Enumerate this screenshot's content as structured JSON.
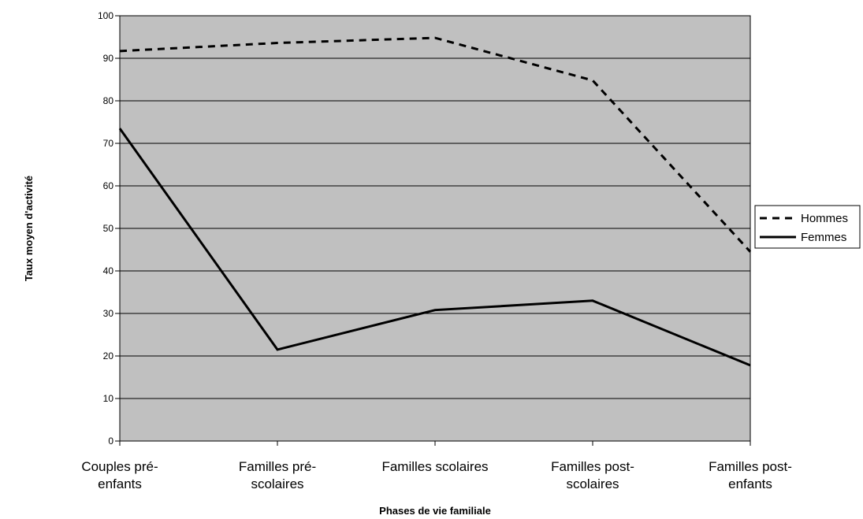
{
  "chart_data": {
    "type": "line",
    "title": "",
    "xlabel": "Phases de vie familiale",
    "ylabel": "Taux moyen d'activité",
    "categories": [
      [
        "Couples pré-",
        "enfants"
      ],
      [
        "Familles pré-",
        "scolaires"
      ],
      [
        "Familles scolaires"
      ],
      [
        "Familles post-",
        "scolaires"
      ],
      [
        "Familles post-",
        "enfants"
      ]
    ],
    "ylim": [
      0,
      100
    ],
    "yticks": [
      "0",
      "10",
      "20",
      "30",
      "40",
      "50",
      "60",
      "70",
      "80",
      "90",
      "100"
    ],
    "grid": true,
    "legend_position": "right",
    "plot_background": "#c0c0c0",
    "series": [
      {
        "name": "Hommes",
        "values": [
          91.7,
          93.6,
          94.8,
          84.8,
          44.5
        ],
        "color": "#000000",
        "style": "dashed"
      },
      {
        "name": "Femmes",
        "values": [
          73.5,
          21.5,
          30.8,
          33.0,
          17.8
        ],
        "color": "#000000",
        "style": "solid"
      }
    ]
  }
}
